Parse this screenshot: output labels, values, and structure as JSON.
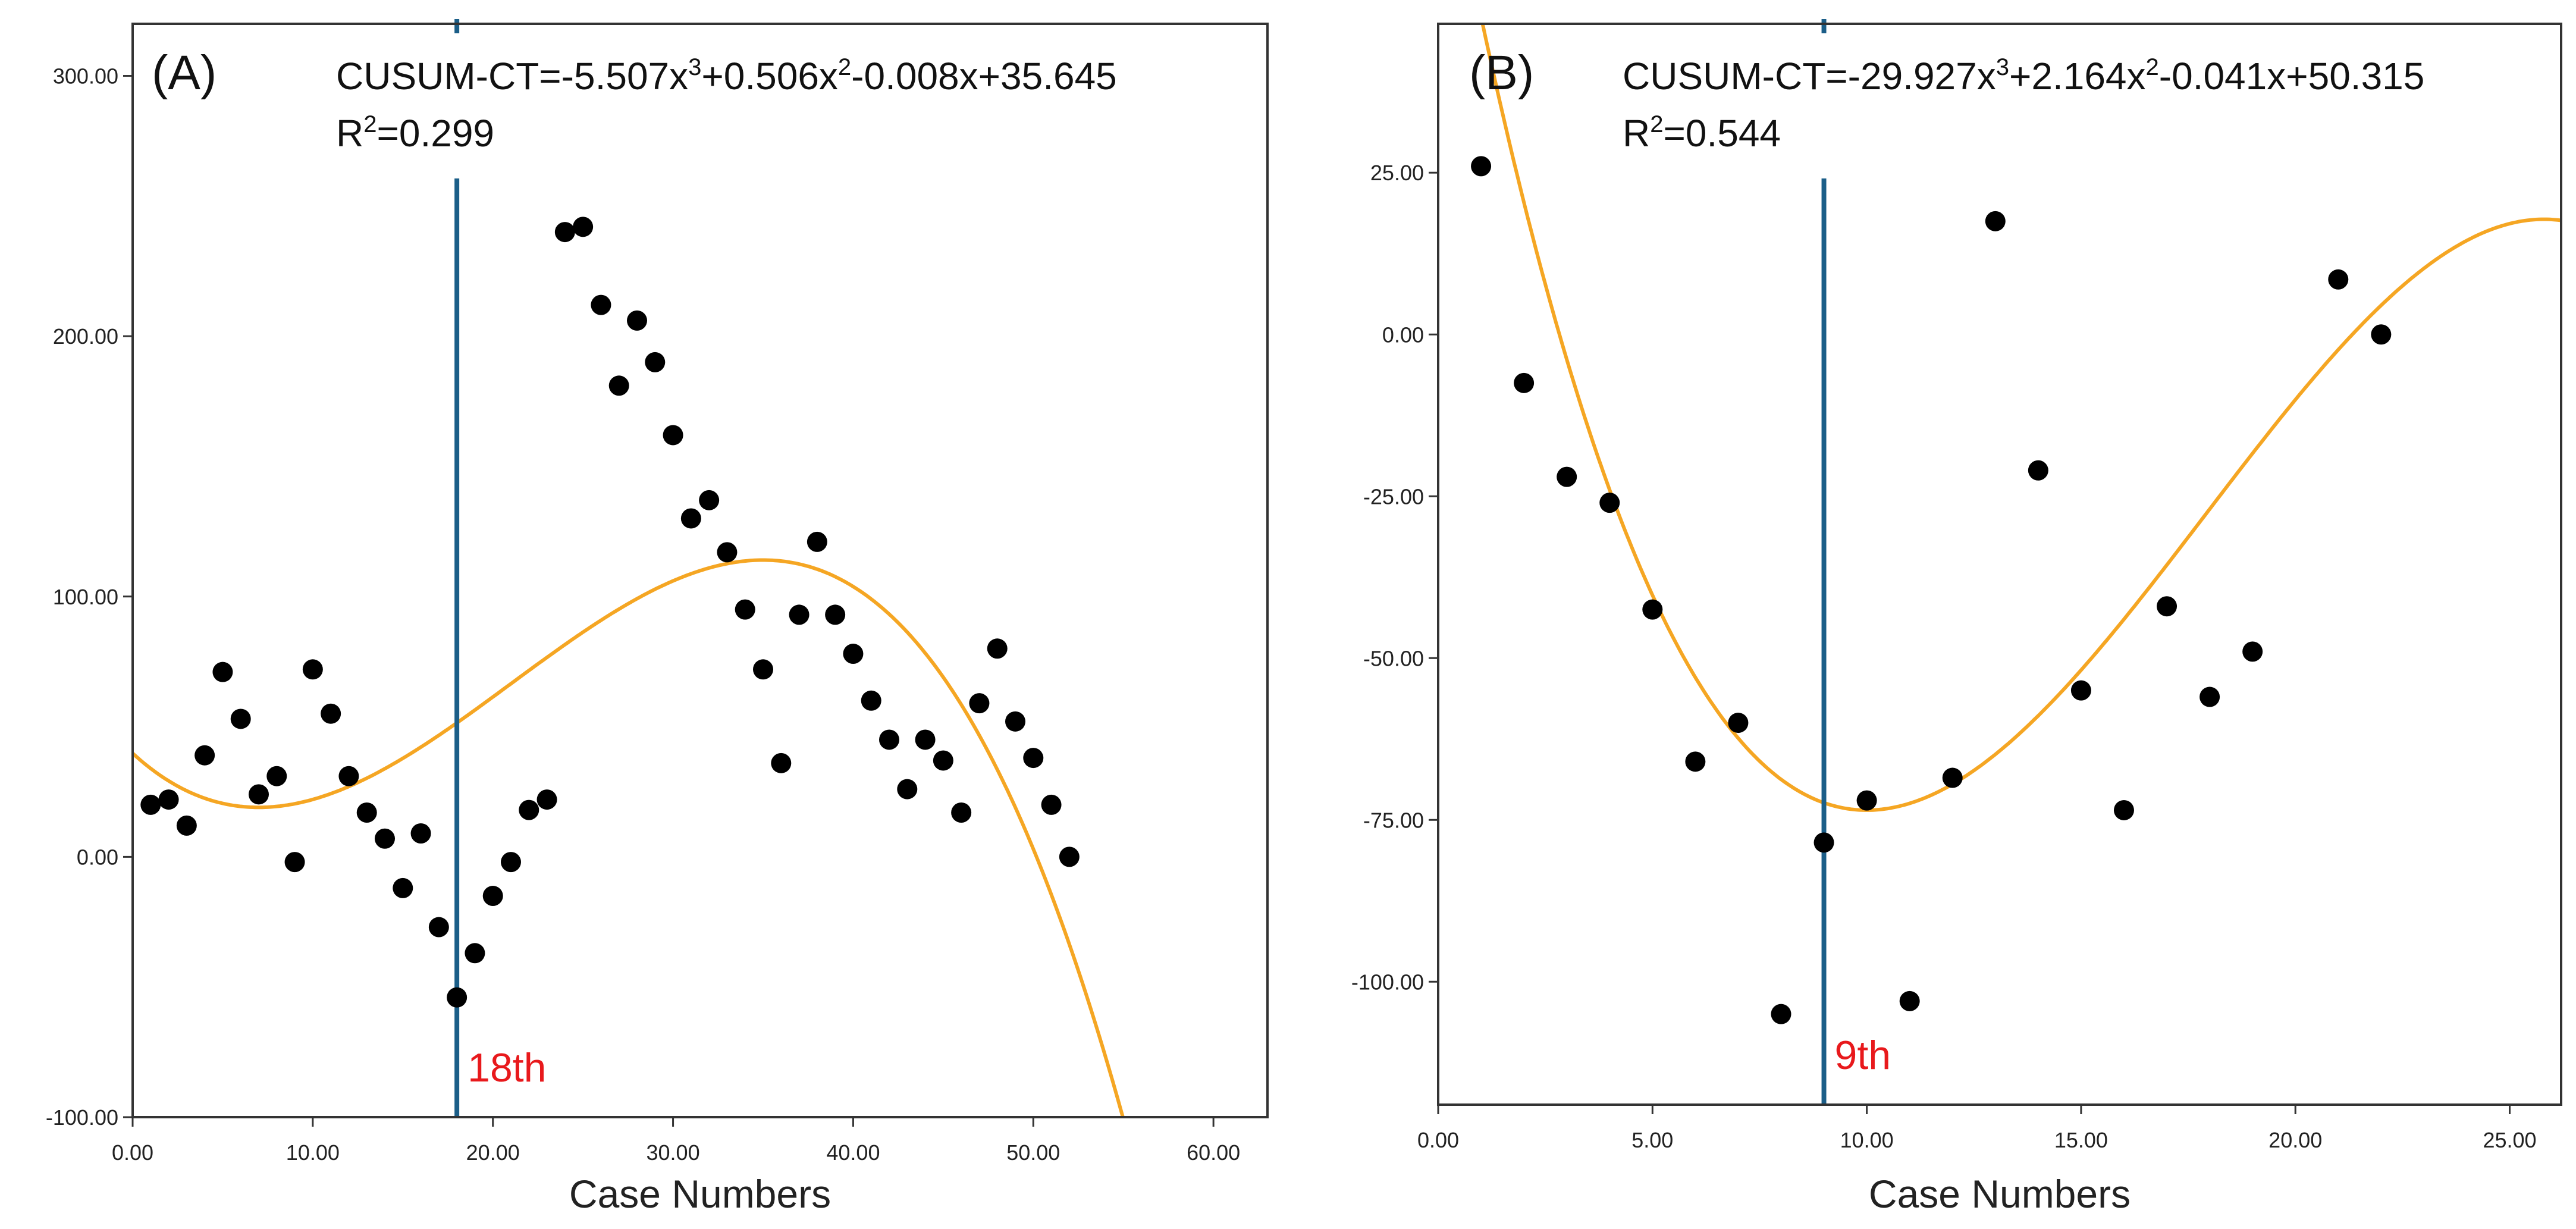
{
  "colors": {
    "fit_curve": "#F5A623",
    "cutoff_line": "#1B5E88",
    "cutoff_label": "#E8191C",
    "points": "#000000",
    "frame": "#333333"
  },
  "chart_data": [
    {
      "type": "scatter",
      "panel_label": "(A)",
      "equation": {
        "prefix": "CUSUM-CT=-5.507x",
        "exp1": "3",
        "mid1": "+0.506x",
        "exp2": "2",
        "rest": "-0.008x+35.645"
      },
      "r2": {
        "base": "R",
        "sup": "2",
        "value": "=0.299"
      },
      "xlabel": "Case Numbers",
      "ylabel": "",
      "xlim": [
        0,
        63
      ],
      "ylim": [
        -100,
        320
      ],
      "x_ticks": [
        0,
        10,
        20,
        30,
        40,
        50,
        60
      ],
      "x_tick_labels": [
        "0.00",
        "10.00",
        "20.00",
        "30.00",
        "40.00",
        "50.00",
        "60.00"
      ],
      "y_ticks": [
        -100,
        0,
        100,
        200,
        300
      ],
      "y_tick_labels": [
        "-100.00",
        "0.00",
        "100.00",
        "200.00",
        "300.00"
      ],
      "cutoff": {
        "x": 18,
        "label": "18th"
      },
      "fit_curve": {
        "peak": [
          35,
          114
        ],
        "trough": [
          7,
          19
        ],
        "x_at_min_y": 55.5
      },
      "points": [
        [
          1,
          20
        ],
        [
          2,
          22
        ],
        [
          3,
          12
        ],
        [
          4,
          39
        ],
        [
          5,
          71
        ],
        [
          6,
          53
        ],
        [
          7,
          24
        ],
        [
          8,
          31
        ],
        [
          9,
          -2
        ],
        [
          10,
          72
        ],
        [
          11,
          55
        ],
        [
          12,
          31
        ],
        [
          13,
          17
        ],
        [
          14,
          7
        ],
        [
          15,
          -12
        ],
        [
          16,
          9
        ],
        [
          17,
          -27
        ],
        [
          18,
          -54
        ],
        [
          19,
          -37
        ],
        [
          20,
          -15
        ],
        [
          21,
          -2
        ],
        [
          22,
          18
        ],
        [
          23,
          22
        ],
        [
          24,
          240
        ],
        [
          25,
          242
        ],
        [
          26,
          212
        ],
        [
          27,
          181
        ],
        [
          28,
          206
        ],
        [
          29,
          190
        ],
        [
          30,
          162
        ],
        [
          31,
          130
        ],
        [
          32,
          137
        ],
        [
          33,
          117
        ],
        [
          34,
          95
        ],
        [
          35,
          72
        ],
        [
          36,
          36
        ],
        [
          37,
          93
        ],
        [
          38,
          121
        ],
        [
          39,
          93
        ],
        [
          40,
          78
        ],
        [
          41,
          60
        ],
        [
          42,
          45
        ],
        [
          43,
          26
        ],
        [
          44,
          45
        ],
        [
          45,
          37
        ],
        [
          46,
          17
        ],
        [
          47,
          59
        ],
        [
          48,
          80
        ],
        [
          49,
          52
        ],
        [
          50,
          38
        ],
        [
          51,
          20
        ],
        [
          52,
          0
        ]
      ]
    },
    {
      "type": "scatter",
      "panel_label": "(B)",
      "equation": {
        "prefix": "CUSUM-CT=-29.927x",
        "exp1": "3",
        "mid1": "+2.164x",
        "exp2": "2",
        "rest": "-0.041x+50.315"
      },
      "r2": {
        "base": "R",
        "sup": "2",
        "value": "=0.544"
      },
      "xlabel": "Case Numbers",
      "ylabel": "",
      "xlim": [
        0,
        26.2
      ],
      "ylim": [
        -119,
        48
      ],
      "x_ticks": [
        0,
        5,
        10,
        15,
        20,
        25
      ],
      "x_tick_labels": [
        "0.00",
        "5.00",
        "10.00",
        "15.00",
        "20.00",
        "25.00"
      ],
      "y_ticks": [
        -100,
        -75,
        -50,
        -25,
        0,
        25
      ],
      "y_tick_labels": [
        "-100.00",
        "-75.00",
        "-50.00",
        "-25.00",
        "0.00",
        "25.00"
      ],
      "cutoff": {
        "x": 9,
        "label": "9th"
      },
      "fit_curve": {
        "x0": 0,
        "y0": 48,
        "trough": [
          10,
          -73.5
        ],
        "peak": [
          25.8,
          17.8
        ]
      },
      "points": [
        [
          1,
          26
        ],
        [
          2,
          -7.5
        ],
        [
          3,
          -22
        ],
        [
          4,
          -26
        ],
        [
          5,
          -42.5
        ],
        [
          6,
          -66
        ],
        [
          7,
          -60
        ],
        [
          8,
          -105
        ],
        [
          9,
          -78.5
        ],
        [
          10,
          -72
        ],
        [
          11,
          -103
        ],
        [
          12,
          -68.5
        ],
        [
          13,
          17.5
        ],
        [
          14,
          -21
        ],
        [
          15,
          -55
        ],
        [
          16,
          -73.5
        ],
        [
          17,
          -42
        ],
        [
          18,
          -56
        ],
        [
          19,
          -49
        ],
        [
          21,
          8.5
        ],
        [
          22,
          0
        ]
      ]
    }
  ]
}
